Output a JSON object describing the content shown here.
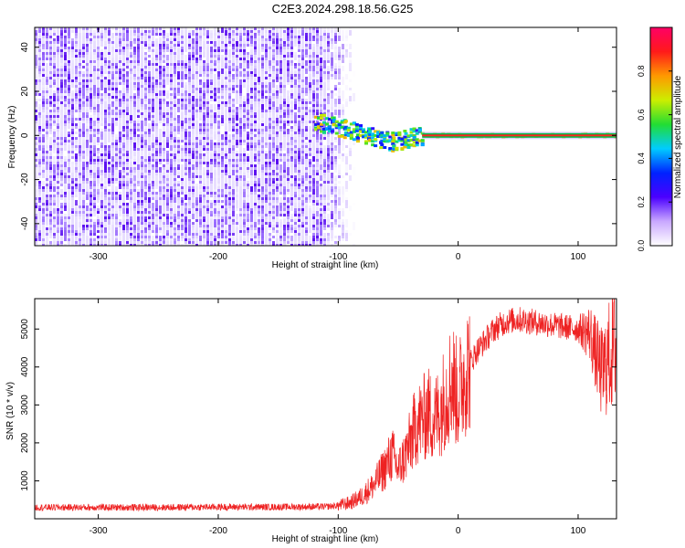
{
  "title": "C2E3.2024.298.18.56.G25",
  "colors": {
    "spectrogram_low": "#e7ddff",
    "spectrogram_mid": "#5a0ef0",
    "snr_line": "#ee2222",
    "colorbar_stops": [
      "#ffffff",
      "#c9a8ff",
      "#4b00ff",
      "#0022ff",
      "#00ccff",
      "#22dd33",
      "#ccee00",
      "#ff9900",
      "#ff1a1a",
      "#ff0066"
    ]
  },
  "chart_data": [
    {
      "type": "heatmap",
      "xlabel": "Height of straight line (km)",
      "ylabel": "Frequency (Hz)",
      "xlim": [
        -353,
        132
      ],
      "ylim": [
        -50,
        49
      ],
      "xticks": [
        -300,
        -200,
        -100,
        0,
        100
      ],
      "xtick_labels": [
        "-300",
        "-200",
        "-100",
        "0",
        "100"
      ],
      "yticks": [
        -40,
        -20,
        0,
        20,
        40
      ],
      "ytick_labels": [
        "-40",
        "-20",
        "0",
        "20",
        "40"
      ],
      "noise_region_x": [
        -353,
        -98
      ],
      "signal_track": [
        {
          "x": -120,
          "y": 6
        },
        {
          "x": -105,
          "y": 4
        },
        {
          "x": -95,
          "y": 3
        },
        {
          "x": -85,
          "y": 1
        },
        {
          "x": -75,
          "y": 0
        },
        {
          "x": -65,
          "y": -2
        },
        {
          "x": -55,
          "y": -3
        },
        {
          "x": -45,
          "y": -2
        },
        {
          "x": -38,
          "y": -1
        },
        {
          "x": -30,
          "y": 0
        },
        {
          "x": 132,
          "y": 0
        }
      ],
      "colorbar": {
        "label": "Normalized spectral amplitude",
        "range": [
          0,
          1
        ],
        "ticks": [
          0.0,
          0.2,
          0.4,
          0.6,
          0.8
        ],
        "tick_labels": [
          "0.0",
          "0.2",
          "0.4",
          "0.6",
          "0.8"
        ]
      }
    },
    {
      "type": "line",
      "xlabel": "Height of straight line (km)",
      "ylabel": "SNR (10 * v/v)",
      "xlim": [
        -353,
        132
      ],
      "ylim": [
        0,
        5800
      ],
      "xticks": [
        -300,
        -200,
        -100,
        0,
        100
      ],
      "xtick_labels": [
        "-300",
        "-200",
        "-100",
        "0",
        "100"
      ],
      "yticks": [
        1000,
        2000,
        3000,
        4000,
        5000
      ],
      "ytick_labels": [
        "1000",
        "2000",
        "3000",
        "4000",
        "5000"
      ],
      "series": [
        {
          "name": "SNR",
          "x": [
            -353,
            -300,
            -250,
            -200,
            -150,
            -110,
            -100,
            -90,
            -80,
            -70,
            -60,
            -55,
            -50,
            -45,
            -40,
            -35,
            -30,
            -25,
            -20,
            -15,
            -10,
            -5,
            0,
            5,
            10,
            15,
            20,
            25,
            30,
            40,
            50,
            60,
            70,
            80,
            90,
            100,
            110,
            115,
            120,
            125,
            132
          ],
          "y": [
            300,
            300,
            300,
            310,
            310,
            320,
            350,
            420,
            600,
            900,
            1400,
            1700,
            1300,
            1600,
            2000,
            2500,
            2600,
            2800,
            2600,
            2900,
            3300,
            3700,
            3200,
            3800,
            4100,
            4400,
            4600,
            4800,
            5000,
            5200,
            5250,
            5200,
            5150,
            5100,
            5050,
            5000,
            4900,
            4300,
            3800,
            4200,
            4700
          ]
        }
      ]
    }
  ]
}
